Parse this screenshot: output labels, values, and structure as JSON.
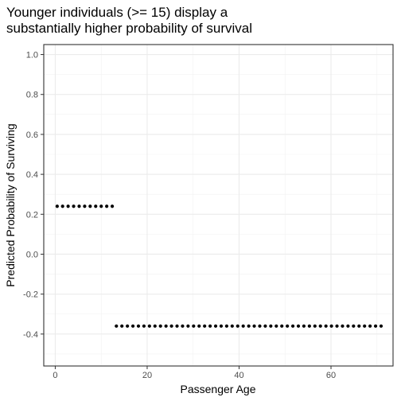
{
  "chart_data": {
    "type": "scatter",
    "title_lines": [
      "Younger individuals (>= 15) display a",
      "substantially higher probability of survival"
    ],
    "xlabel": "Passenger Age",
    "ylabel": "Predicted Probability of Surviving",
    "xlim": [
      -2.5,
      73.5
    ],
    "ylim": [
      -0.56,
      1.05
    ],
    "x_ticks": [
      0,
      20,
      40,
      60
    ],
    "y_ticks": [
      -0.4,
      -0.2,
      0.0,
      0.2,
      0.4,
      0.6,
      0.8,
      1.0
    ],
    "x_tick_labels": [
      "0",
      "20",
      "40",
      "60"
    ],
    "y_tick_labels": [
      "-0.4",
      "-0.2",
      "0.0",
      "0.2",
      "0.4",
      "0.6",
      "0.8",
      "1.0"
    ],
    "grid": true,
    "point_color": "#000000",
    "series": [
      {
        "x": [
          0.42,
          1.6,
          2.8,
          4.0,
          5.2,
          6.4,
          7.6,
          8.8,
          10.0,
          11.2,
          12.4
        ],
        "y": [
          0.24,
          0.24,
          0.24,
          0.24,
          0.24,
          0.24,
          0.24,
          0.24,
          0.24,
          0.24,
          0.24
        ]
      },
      {
        "x": [
          13.3,
          14.5,
          15.7,
          16.9,
          18.1,
          19.3,
          20.5,
          21.7,
          22.9,
          24.1,
          25.3,
          26.5,
          27.7,
          28.9,
          30.1,
          31.3,
          32.5,
          33.7,
          34.9,
          36.1,
          37.3,
          38.5,
          39.7,
          40.9,
          42.1,
          43.3,
          44.5,
          45.7,
          46.9,
          48.1,
          49.3,
          50.5,
          51.7,
          52.9,
          54.1,
          55.3,
          56.5,
          57.7,
          58.9,
          60.1,
          61.3,
          62.5,
          63.7,
          64.9,
          66.1,
          67.3,
          68.5,
          69.7,
          70.9
        ],
        "y": [
          -0.36,
          -0.36,
          -0.36,
          -0.36,
          -0.36,
          -0.36,
          -0.36,
          -0.36,
          -0.36,
          -0.36,
          -0.36,
          -0.36,
          -0.36,
          -0.36,
          -0.36,
          -0.36,
          -0.36,
          -0.36,
          -0.36,
          -0.36,
          -0.36,
          -0.36,
          -0.36,
          -0.36,
          -0.36,
          -0.36,
          -0.36,
          -0.36,
          -0.36,
          -0.36,
          -0.36,
          -0.36,
          -0.36,
          -0.36,
          -0.36,
          -0.36,
          -0.36,
          -0.36,
          -0.36,
          -0.36,
          -0.36,
          -0.36,
          -0.36,
          -0.36,
          -0.36,
          -0.36,
          -0.36,
          -0.36,
          -0.36
        ]
      }
    ]
  }
}
